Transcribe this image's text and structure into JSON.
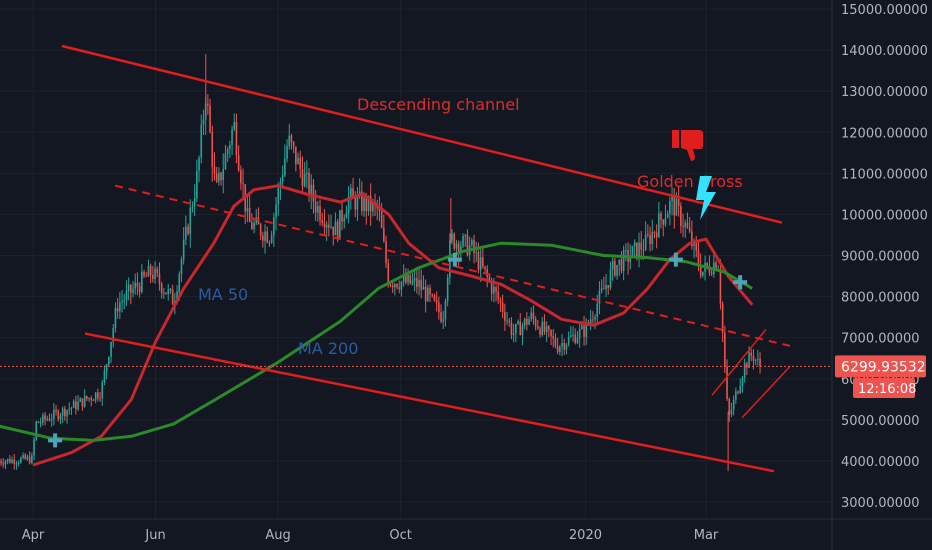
{
  "chart_data": {
    "type": "candlestick",
    "x_ticks": [
      "Apr",
      "Jun",
      "Aug",
      "Oct",
      "2020",
      "Mar"
    ],
    "y_ticks": [
      "3000.00000",
      "4000.00000",
      "5000.00000",
      "6000.00000",
      "7000.00000",
      "8000.00000",
      "9000.00000",
      "10000.00000",
      "11000.00000",
      "12000.00000",
      "13000.00000",
      "14000.00000",
      "15000.00000"
    ],
    "ylim": [
      2600,
      15200
    ],
    "last_price": "6299.93532",
    "countdown": "12:16:08",
    "series": [
      {
        "name": "MA 50",
        "points": [
          [
            "2019-04-01",
            3900
          ],
          [
            "2019-04-20",
            4200
          ],
          [
            "2019-05-05",
            4600
          ],
          [
            "2019-05-20",
            5500
          ],
          [
            "2019-06-01",
            6900
          ],
          [
            "2019-06-15",
            8200
          ],
          [
            "2019-06-30",
            9300
          ],
          [
            "2019-07-10",
            10200
          ],
          [
            "2019-07-20",
            10600
          ],
          [
            "2019-08-01",
            10700
          ],
          [
            "2019-08-15",
            10500
          ],
          [
            "2019-09-01",
            10300
          ],
          [
            "2019-09-12",
            10500
          ],
          [
            "2019-09-25",
            10000
          ],
          [
            "2019-10-05",
            9300
          ],
          [
            "2019-10-20",
            8700
          ],
          [
            "2019-11-05",
            8500
          ],
          [
            "2019-11-20",
            8300
          ],
          [
            "2019-12-05",
            7900
          ],
          [
            "2019-12-20",
            7450
          ],
          [
            "2020-01-05",
            7300
          ],
          [
            "2020-01-20",
            7600
          ],
          [
            "2020-02-01",
            8200
          ],
          [
            "2020-02-12",
            8900
          ],
          [
            "2020-02-22",
            9300
          ],
          [
            "2020-03-01",
            9400
          ],
          [
            "2020-03-12",
            8500
          ],
          [
            "2020-03-24",
            7800
          ]
        ]
      },
      {
        "name": "MA 200",
        "points": [
          [
            "2019-03-15",
            4850
          ],
          [
            "2019-04-10",
            4550
          ],
          [
            "2019-05-01",
            4500
          ],
          [
            "2019-05-20",
            4600
          ],
          [
            "2019-06-10",
            4900
          ],
          [
            "2019-07-01",
            5500
          ],
          [
            "2019-08-01",
            6400
          ],
          [
            "2019-09-01",
            7400
          ],
          [
            "2019-09-20",
            8200
          ],
          [
            "2019-10-10",
            8700
          ],
          [
            "2019-11-01",
            9100
          ],
          [
            "2019-11-20",
            9300
          ],
          [
            "2019-12-15",
            9250
          ],
          [
            "2020-01-10",
            9000
          ],
          [
            "2020-02-01",
            8950
          ],
          [
            "2020-02-20",
            8850
          ],
          [
            "2020-03-10",
            8600
          ],
          [
            "2020-03-24",
            8200
          ]
        ]
      }
    ],
    "annotations": [
      {
        "type": "label",
        "text": "Descending channel",
        "color": "#e02a2a"
      },
      {
        "type": "label",
        "text": "Golden Cross",
        "color": "#e02a2a"
      },
      {
        "type": "label",
        "text": "MA 50",
        "color": "#2c5aa0"
      },
      {
        "type": "label",
        "text": "MA 200",
        "color": "#2c5aa0"
      },
      {
        "type": "cross-marker",
        "date": "2019-04-12",
        "price": 4500
      },
      {
        "type": "cross-marker",
        "date": "2019-10-28",
        "price": 8900
      },
      {
        "type": "cross-marker",
        "date": "2020-02-15",
        "price": 8900
      },
      {
        "type": "cross-marker",
        "date": "2020-03-18",
        "price": 8350
      }
    ],
    "colors": {
      "background": "#131722",
      "up": "#26a69a",
      "down": "#ef5350",
      "ma50": "#c8272d",
      "ma200": "#2a8a2a",
      "channel": "#e01e1e",
      "price_label": "#ef5350",
      "marker": "#4fa3b8",
      "lightning": "#34e1ff"
    },
    "icons": [
      "thumbs-down-icon",
      "lightning-icon"
    ]
  }
}
